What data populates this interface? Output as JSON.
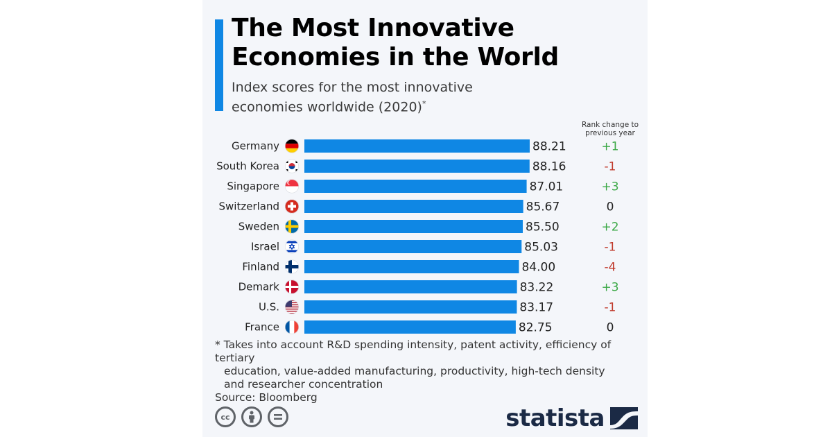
{
  "header": {
    "title_line1": "The Most Innovative",
    "title_line2": "Economies in the World",
    "subtitle_line1": "Index scores for the most innovative",
    "subtitle_line2": "economies worldwide (2020)",
    "subtitle_marker": "*"
  },
  "rank_header": {
    "line1": "Rank change to",
    "line2": "previous year"
  },
  "colors": {
    "bar": "#0f87e4",
    "positive": "#3aa845",
    "negative": "#c0392b",
    "neutral": "#222222",
    "logo": "#1b2a45"
  },
  "chart_data": {
    "type": "bar",
    "orientation": "horizontal",
    "title": "The Most Innovative Economies in the World",
    "subtitle": "Index scores for the most innovative economies worldwide (2020)*",
    "xlabel": "",
    "ylabel": "",
    "xlim": [
      0,
      100
    ],
    "grid": false,
    "categories": [
      "Germany",
      "South Korea",
      "Singapore",
      "Switzerland",
      "Sweden",
      "Israel",
      "Finland",
      "Demark",
      "U.S.",
      "France"
    ],
    "flags": [
      "flag-germany",
      "flag-south-korea",
      "flag-singapore",
      "flag-switzerland",
      "flag-sweden",
      "flag-israel",
      "flag-finland",
      "flag-denmark",
      "flag-usa",
      "flag-france"
    ],
    "values": [
      88.21,
      88.16,
      87.01,
      85.67,
      85.5,
      85.03,
      84.0,
      83.22,
      83.17,
      82.75
    ],
    "value_labels": [
      "88.21",
      "88.16",
      "87.01",
      "85.67",
      "85.50",
      "85.03",
      "84.00",
      "83.22",
      "83.17",
      "82.75"
    ],
    "rank_change": [
      "+1",
      "-1",
      "+3",
      "0",
      "+2",
      "-1",
      "-4",
      "+3",
      "-1",
      "0"
    ],
    "rank_change_column_title": "Rank change to previous year"
  },
  "footer": {
    "note_line1": "* Takes into account R&D spending intensity, patent activity, efficiency of tertiary",
    "note_line2": "education, value-added manufacturing, productivity, high-tech density",
    "note_line3": "and researcher concentration",
    "source": "Source: Bloomberg",
    "cc_icons": [
      "cc-icon",
      "attribution-icon",
      "no-derivatives-icon"
    ],
    "cc_label": "cc",
    "nd_label": "=",
    "logo_text": "statista"
  }
}
